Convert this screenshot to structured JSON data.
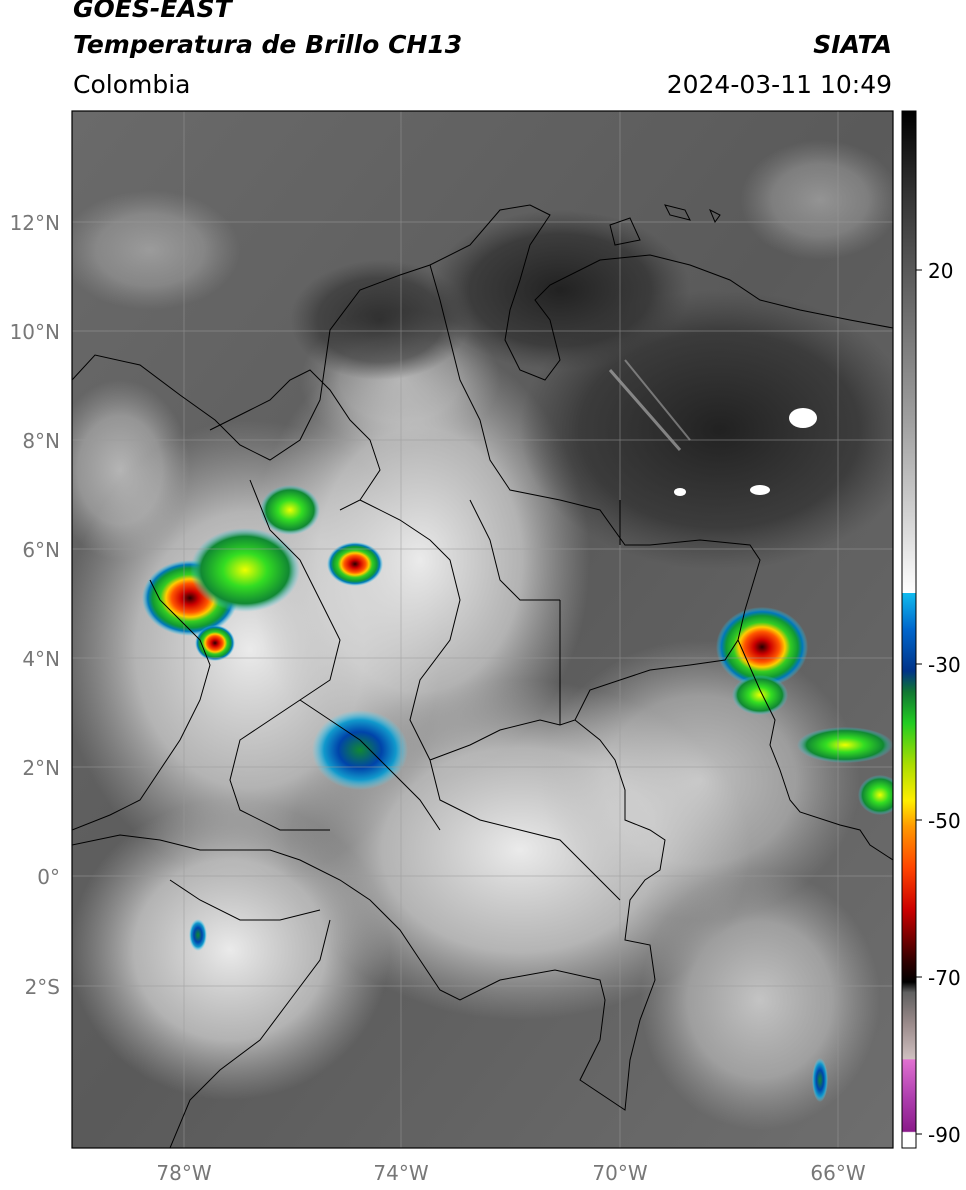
{
  "header": {
    "satellite": "GOES-EAST",
    "product": "Temperatura de Brillo CH13",
    "brand": "SIATA",
    "region": "Colombia",
    "timestamp": "2024-03-11 10:49"
  },
  "axes": {
    "lat_labels": [
      "12°N",
      "10°N",
      "8°N",
      "6°N",
      "4°N",
      "2°N",
      "0°",
      "2°S"
    ],
    "lat_values": [
      12,
      10,
      8,
      6,
      4,
      2,
      0,
      -2
    ],
    "lon_labels": [
      "78°W",
      "74°W",
      "70°W",
      "66°W"
    ],
    "lon_values": [
      -78,
      -74,
      -70,
      -66
    ],
    "lon_range": [
      -80,
      -65
    ],
    "lat_range": [
      -5,
      14
    ],
    "grid": true
  },
  "colorbar": {
    "tick_labels": [
      "20",
      "-30",
      "-50",
      "-70",
      "-90"
    ],
    "tick_values": [
      20,
      -30,
      -50,
      -70,
      -90
    ],
    "range": [
      -92,
      37
    ],
    "unit": ""
  },
  "colors": {
    "warm_surface": "#3c3c3c",
    "cloud_cold": "#e8e8e8",
    "convective_green": "#22bb22",
    "convective_yellow": "#ffee00",
    "convective_red": "#dd1111",
    "convective_core": "#330000",
    "cyan_edge": "#00bbdd"
  }
}
